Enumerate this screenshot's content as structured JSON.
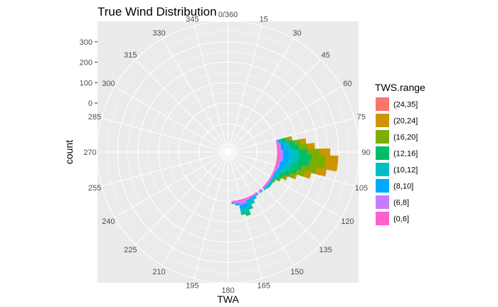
{
  "chart_data": {
    "type": "polar-stacked-bar",
    "title": "True Wind Distribution",
    "xlabel": "TWA",
    "ylabel": "count",
    "angle_ticks": [
      "0/360",
      "15",
      "30",
      "45",
      "60",
      "75",
      "90",
      "105",
      "120",
      "135",
      "150",
      "165",
      "180",
      "195",
      "210",
      "225",
      "240",
      "255",
      "270",
      "285",
      "300",
      "315",
      "330",
      "345"
    ],
    "count_ticks": [
      0,
      100,
      200,
      300
    ],
    "count_range": [
      -240,
      400
    ],
    "grid": true,
    "legend": {
      "title": "TWS.range",
      "position": "right",
      "items": [
        {
          "label": "(24,35]",
          "color": "#F8766D"
        },
        {
          "label": "(20,24]",
          "color": "#CD9600"
        },
        {
          "label": "(16,20]",
          "color": "#7CAE00"
        },
        {
          "label": "(12,16]",
          "color": "#00BE67"
        },
        {
          "label": "(10,12]",
          "color": "#00BFC4"
        },
        {
          "label": "(8,10]",
          "color": "#00A9FF"
        },
        {
          "label": "(6,8]",
          "color": "#C77CFF"
        },
        {
          "label": "(0,6]",
          "color": "#FF61CC"
        }
      ]
    },
    "stack_order": [
      "(0,6]",
      "(6,8]",
      "(8,10]",
      "(10,12]",
      "(12,16]",
      "(16,20]",
      "(20,24]",
      "(24,35]"
    ],
    "bars": [
      {
        "twa": 78,
        "counts": [
          5,
          5,
          10,
          10,
          20,
          20,
          10,
          0
        ]
      },
      {
        "twa": 82,
        "counts": [
          10,
          10,
          20,
          20,
          30,
          30,
          25,
          0
        ]
      },
      {
        "twa": 86,
        "counts": [
          10,
          10,
          20,
          30,
          40,
          40,
          35,
          0
        ]
      },
      {
        "twa": 90,
        "counts": [
          15,
          15,
          30,
          40,
          50,
          60,
          50,
          0
        ]
      },
      {
        "twa": 94,
        "counts": [
          15,
          15,
          35,
          45,
          60,
          70,
          60,
          0
        ]
      },
      {
        "twa": 98,
        "counts": [
          15,
          15,
          30,
          40,
          60,
          80,
          60,
          0
        ]
      },
      {
        "twa": 102,
        "counts": [
          10,
          10,
          25,
          35,
          50,
          70,
          50,
          0
        ]
      },
      {
        "twa": 106,
        "counts": [
          10,
          10,
          20,
          30,
          40,
          40,
          30,
          0
        ]
      },
      {
        "twa": 110,
        "counts": [
          5,
          10,
          15,
          20,
          30,
          25,
          10,
          0
        ]
      },
      {
        "twa": 114,
        "counts": [
          5,
          5,
          10,
          15,
          20,
          15,
          5,
          0
        ]
      },
      {
        "twa": 118,
        "counts": [
          5,
          5,
          10,
          10,
          10,
          10,
          0,
          0
        ]
      },
      {
        "twa": 122,
        "counts": [
          5,
          5,
          5,
          5,
          5,
          5,
          0,
          0
        ]
      },
      {
        "twa": 126,
        "counts": [
          5,
          5,
          5,
          5,
          5,
          0,
          0,
          0
        ]
      },
      {
        "twa": 130,
        "counts": [
          5,
          5,
          5,
          5,
          5,
          0,
          0,
          0
        ]
      },
      {
        "twa": 134,
        "counts": [
          5,
          5,
          5,
          5,
          0,
          0,
          0,
          0
        ]
      },
      {
        "twa": 140,
        "counts": [
          5,
          5,
          5,
          0,
          0,
          0,
          0,
          0
        ]
      },
      {
        "twa": 146,
        "counts": [
          5,
          5,
          5,
          0,
          0,
          0,
          0,
          0
        ]
      },
      {
        "twa": 150,
        "counts": [
          5,
          5,
          5,
          10,
          0,
          0,
          0,
          0
        ]
      },
      {
        "twa": 154,
        "counts": [
          5,
          5,
          10,
          20,
          0,
          0,
          0,
          0
        ]
      },
      {
        "twa": 158,
        "counts": [
          5,
          10,
          10,
          25,
          10,
          0,
          0,
          0
        ]
      },
      {
        "twa": 162,
        "counts": [
          10,
          15,
          20,
          25,
          15,
          0,
          0,
          0
        ]
      },
      {
        "twa": 166,
        "counts": [
          10,
          15,
          20,
          20,
          10,
          0,
          0,
          0
        ]
      },
      {
        "twa": 170,
        "counts": [
          5,
          10,
          10,
          0,
          0,
          0,
          0,
          0
        ]
      },
      {
        "twa": 174,
        "counts": [
          5,
          5,
          5,
          0,
          0,
          0,
          0,
          0
        ]
      }
    ]
  }
}
